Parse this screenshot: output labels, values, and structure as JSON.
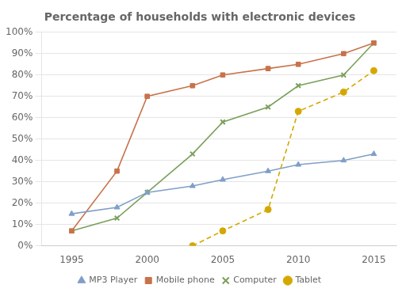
{
  "chart_data": {
    "type": "line",
    "title": "Percentage of households with electronic devices",
    "series": [
      {
        "name": "MP3 Player",
        "color": "#7F9FC8",
        "marker": "triangle",
        "line_style": "solid",
        "x": [
          1995,
          1998,
          2000,
          2003,
          2005,
          2008,
          2010,
          2013,
          2015
        ],
        "values": [
          15,
          18,
          25,
          28,
          31,
          35,
          38,
          40,
          43
        ]
      },
      {
        "name": "Mobile phone",
        "color": "#C8724A",
        "marker": "square",
        "line_style": "solid",
        "x": [
          1995,
          1998,
          2000,
          2003,
          2005,
          2008,
          2010,
          2013,
          2015
        ],
        "values": [
          7,
          35,
          70,
          75,
          80,
          83,
          85,
          90,
          95
        ]
      },
      {
        "name": "Computer",
        "color": "#7BA05B",
        "marker": "x",
        "line_style": "solid",
        "x": [
          1995,
          1998,
          2000,
          2003,
          2005,
          2008,
          2010,
          2013,
          2015
        ],
        "values": [
          7,
          13,
          25,
          43,
          58,
          65,
          75,
          80,
          95
        ]
      },
      {
        "name": "Tablet",
        "color": "#D4A800",
        "marker": "circle",
        "line_style": "dashed",
        "x": [
          2003,
          2005,
          2008,
          2010,
          2013,
          2015
        ],
        "values": [
          0,
          7,
          17,
          63,
          72,
          82
        ]
      }
    ],
    "xlim": [
      1993,
      2016.5
    ],
    "ylim": [
      0,
      100
    ],
    "xticks": [
      1995,
      2000,
      2005,
      2010,
      2015
    ],
    "yticks": [
      {
        "value": 0,
        "label": "0%"
      },
      {
        "value": 10,
        "label": "10%"
      },
      {
        "value": 20,
        "label": "20%"
      },
      {
        "value": 30,
        "label": "30%"
      },
      {
        "value": 40,
        "label": "40%"
      },
      {
        "value": 50,
        "label": "50%"
      },
      {
        "value": 60,
        "label": "60%"
      },
      {
        "value": 70,
        "label": "70%"
      },
      {
        "value": 80,
        "label": "80%"
      },
      {
        "value": 90,
        "label": "90%"
      },
      {
        "value": 100,
        "label": "100%"
      }
    ],
    "grid": "y",
    "legend": "bottom"
  }
}
